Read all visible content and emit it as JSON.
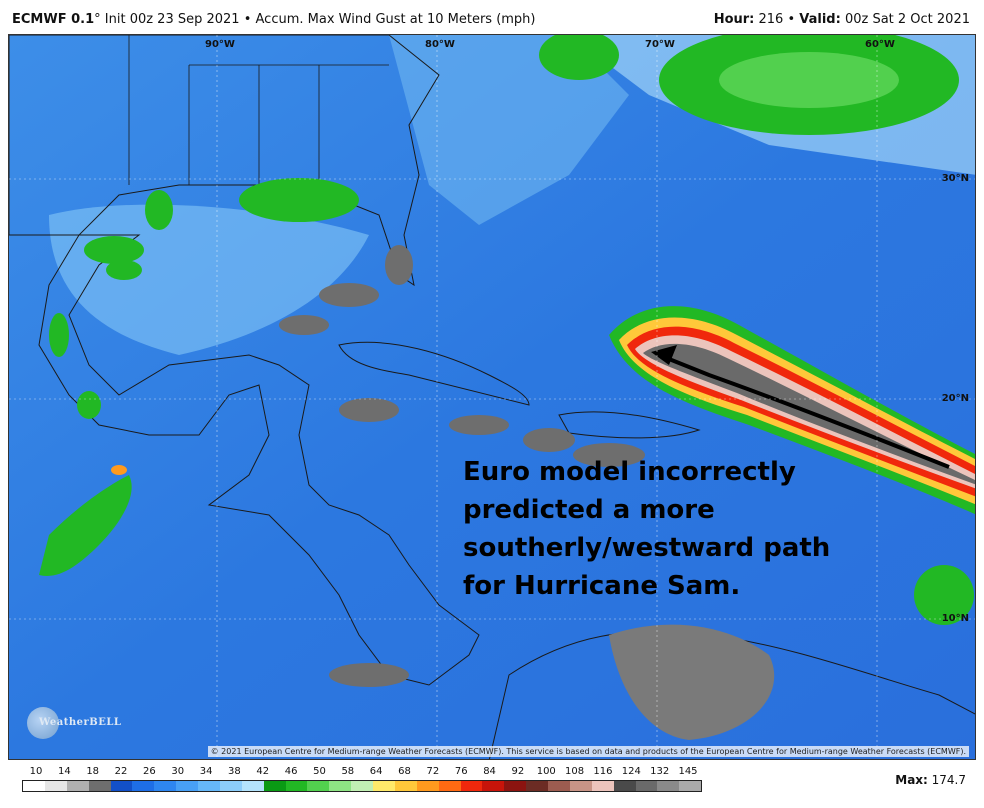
{
  "header": {
    "model": "ECMWF 0.1",
    "degree": "°",
    "init": " Init 00z 23 Sep 2021",
    "bullet": " • ",
    "product": "Accum. Max Wind Gust at 10 Meters (mph)",
    "hour_label": "Hour:",
    "hour_value": " 216",
    "valid_label": "Valid:",
    "valid_value": " 00z Sat 2 Oct 2021"
  },
  "map": {
    "lon_labels": [
      "90°W",
      "80°W",
      "70°W",
      "60°W"
    ],
    "lat_labels": [
      "30°N",
      "20°N",
      "10°N"
    ],
    "annotation": "Euro model incorrectly predicted a more southerly/westward path for Hurricane Sam.",
    "copyright": "© 2021 European Centre for Medium-range Weather Forecasts (ECMWF). This service is based on data and products of the European Centre for Medium-range Weather Forecasts (ECMWF).",
    "logo_text": "WeatherBELL"
  },
  "legend": {
    "ticks": [
      "10",
      "14",
      "18",
      "22",
      "26",
      "30",
      "34",
      "38",
      "42",
      "46",
      "50",
      "58",
      "64",
      "68",
      "72",
      "76",
      "84",
      "92",
      "100",
      "108",
      "116",
      "124",
      "132",
      "145"
    ],
    "colors": [
      "#ffffff",
      "#e6e6e6",
      "#b0b0b0",
      "#6e6e6e",
      "#1250c8",
      "#1e6ee6",
      "#2e86f0",
      "#48a0f5",
      "#66b8f8",
      "#8ccdfa",
      "#b4e3fc",
      "#0a9a14",
      "#22b824",
      "#52d04e",
      "#8ee484",
      "#c2f0b4",
      "#ffea6a",
      "#ffc83a",
      "#ff9a1e",
      "#ff6a12",
      "#f0280c",
      "#c8140a",
      "#8c1410",
      "#6c2c24",
      "#9c5c50",
      "#c89486",
      "#ecc4bc",
      "#4a4a4a",
      "#6a6a6a",
      "#8a8a8a",
      "#aaaaaa"
    ],
    "max_label": "Max:",
    "max_value": " 174.7"
  }
}
